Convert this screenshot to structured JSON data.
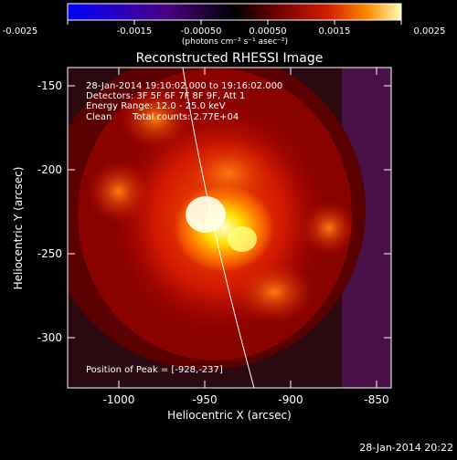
{
  "colorbar": {
    "ticks": [
      "-0.0025",
      "-0.0015",
      "-0.00050",
      "0.00050",
      "0.0015",
      "0.0025"
    ],
    "units": "(photons cm⁻² s⁻¹ asec⁻²)"
  },
  "title": "Reconstructed RHESSI Image",
  "info": {
    "line1": "28-Jan-2014 19:10:02.000 to 19:16:02.000",
    "line2": "Detectors: 3F 5F 6F 7F 8F 9F, Att 1",
    "line3": "Energy Range: 12.0 - 25.0 keV",
    "line4_left": "Clean",
    "line4_right": "Total counts: 2.77E+04"
  },
  "peak_label": "Position of Peak = [-928,-237]",
  "axes": {
    "xlabel": "Heliocentric X (arcsec)",
    "ylabel": "Heliocentric Y (arcsec)",
    "xticks": [
      "-1000",
      "-950",
      "-900",
      "-850"
    ],
    "yticks": [
      "-150",
      "-200",
      "-250",
      "-300"
    ]
  },
  "timestamp": "28-Jan-2014 20:22",
  "colors": {
    "colormap": [
      "#0000ff",
      "#4b0082",
      "#000000",
      "#5a0000",
      "#c81400",
      "#ff7800",
      "#ffff80"
    ]
  }
}
